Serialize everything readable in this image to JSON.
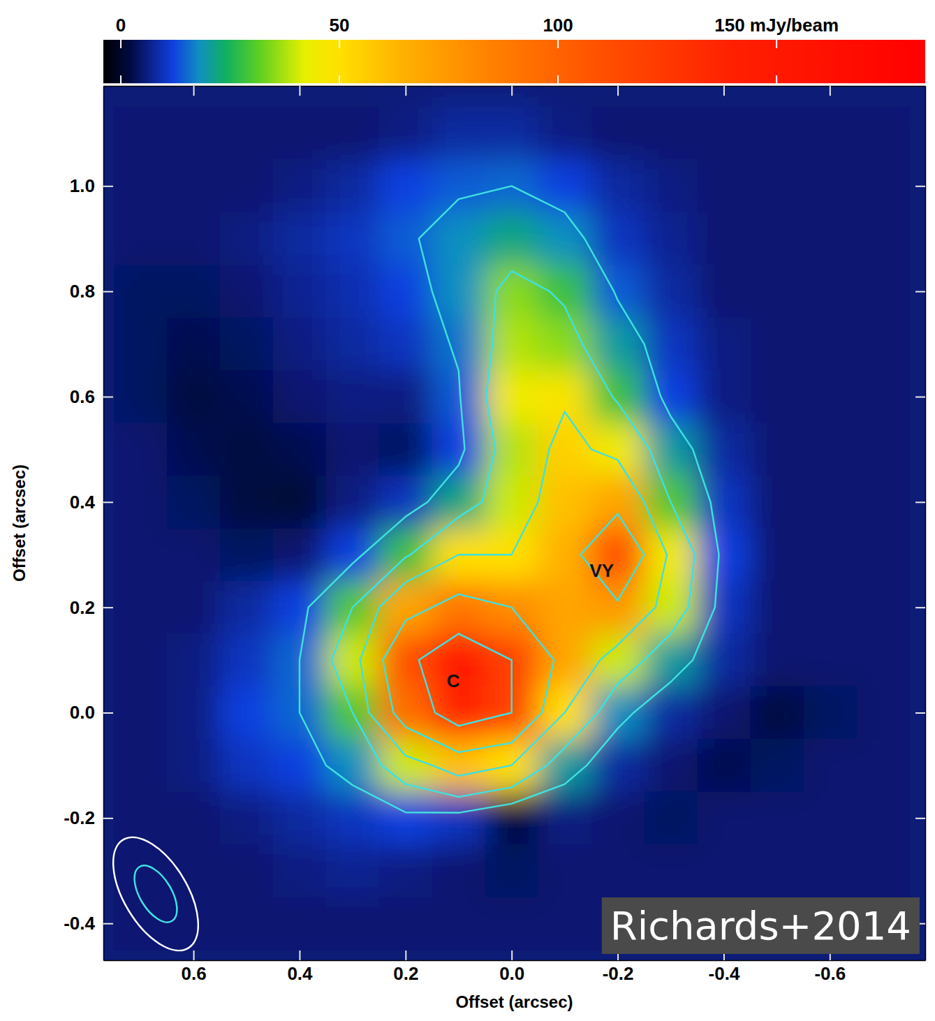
{
  "chart_data": {
    "type": "heatmap",
    "x_label": "Offset (arcsec)",
    "y_label": "Offset (arcsec)",
    "xlim": [
      0.77,
      -0.78
    ],
    "ylim": [
      -0.47,
      1.19
    ],
    "xticks": [
      0.6,
      0.4,
      0.2,
      {
        "value": 0,
        "label": "0.0"
      },
      -0.2,
      -0.4,
      -0.6
    ],
    "yticks": [
      -0.4,
      -0.2,
      {
        "value": 0,
        "label": "0.0"
      },
      0.2,
      0.4,
      0.6,
      0.8,
      {
        "value": 1,
        "label": "1.0"
      }
    ],
    "x": [
      0.7,
      0.6,
      0.5,
      0.4,
      0.3,
      0.2,
      0.1,
      0.0,
      -0.1,
      -0.2,
      -0.3,
      -0.4,
      -0.5,
      -0.6,
      -0.7
    ],
    "y": [
      1.1,
      1.0,
      0.9,
      0.8,
      0.7,
      0.6,
      0.5,
      0.4,
      0.3,
      0.2,
      0.1,
      0.0,
      -0.1,
      -0.2,
      -0.3,
      -0.4
    ],
    "cells": [
      [
        5,
        5,
        5,
        5,
        5,
        6,
        8,
        8,
        6,
        5,
        5,
        5,
        5,
        5,
        5
      ],
      [
        5,
        5,
        5,
        6,
        8,
        12,
        14,
        15,
        12,
        8,
        6,
        5,
        5,
        5,
        5
      ],
      [
        5,
        5,
        6,
        8,
        10,
        14,
        18,
        22,
        18,
        10,
        7,
        5,
        5,
        5,
        5
      ],
      [
        4,
        4,
        5,
        7,
        9,
        12,
        18,
        35,
        28,
        14,
        8,
        5,
        5,
        5,
        5
      ],
      [
        4,
        3,
        4,
        6,
        8,
        10,
        16,
        38,
        35,
        20,
        10,
        6,
        5,
        5,
        5
      ],
      [
        4,
        2,
        3,
        5,
        6,
        6,
        14,
        45,
        48,
        28,
        12,
        6,
        5,
        5,
        5
      ],
      [
        5,
        3,
        2,
        3,
        5,
        4,
        12,
        38,
        55,
        45,
        20,
        8,
        5,
        5,
        5
      ],
      [
        5,
        4,
        2,
        1,
        6,
        10,
        22,
        40,
        60,
        70,
        30,
        10,
        5,
        5,
        5
      ],
      [
        5,
        5,
        4,
        5,
        12,
        28,
        50,
        50,
        65,
        115,
        45,
        12,
        5,
        5,
        5
      ],
      [
        5,
        5,
        8,
        12,
        30,
        70,
        90,
        80,
        70,
        75,
        40,
        10,
        5,
        5,
        5
      ],
      [
        5,
        6,
        10,
        15,
        40,
        110,
        150,
        120,
        70,
        40,
        20,
        8,
        5,
        5,
        5
      ],
      [
        5,
        6,
        12,
        15,
        30,
        95,
        140,
        120,
        50,
        18,
        8,
        5,
        2,
        4,
        5
      ],
      [
        5,
        6,
        10,
        12,
        18,
        40,
        60,
        50,
        20,
        8,
        5,
        3,
        4,
        5,
        5
      ],
      [
        5,
        5,
        6,
        8,
        10,
        12,
        10,
        2,
        6,
        5,
        4,
        5,
        5,
        5,
        5
      ],
      [
        5,
        5,
        5,
        6,
        7,
        6,
        5,
        4,
        5,
        5,
        5,
        5,
        5,
        5,
        5
      ],
      [
        5,
        5,
        5,
        5,
        5,
        5,
        5,
        5,
        5,
        5,
        5,
        5,
        5,
        5,
        5
      ]
    ],
    "colorbar": {
      "range": [
        -4,
        184
      ],
      "ticks": [
        0,
        50,
        100,
        {
          "value": 150,
          "label": "150 mJy/beam"
        }
      ]
    },
    "contour_levels": [
      15,
      30,
      50,
      80,
      120
    ],
    "annotations": [
      {
        "text": "C",
        "x": 0.11,
        "y": 0.06
      },
      {
        "text": "VY",
        "x": -0.17,
        "y": 0.27
      }
    ],
    "beams": [
      {
        "major": 0.24,
        "minor": 0.12,
        "pa": 31
      },
      {
        "major": 0.12,
        "minor": 0.06,
        "pa": 31
      }
    ],
    "credit": "Richards+2014"
  }
}
